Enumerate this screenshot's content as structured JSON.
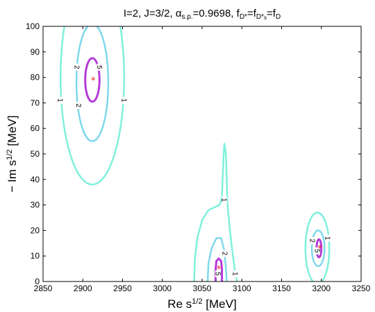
{
  "chart_data": {
    "type": "contour",
    "title": {
      "parts": [
        {
          "text": "I=2, J=3/2,  α",
          "sub": false
        },
        {
          "text": "s.p.",
          "sub": true
        },
        {
          "text": "=0.9698, f",
          "sub": false
        },
        {
          "text": "D*",
          "sub": true
        },
        {
          "text": "=f",
          "sub": false
        },
        {
          "text": "D*",
          "sub": true
        },
        {
          "text": "s",
          "sub": true,
          "deep": true
        },
        {
          "text": "=f",
          "sub": false
        },
        {
          "text": "D",
          "sub": true
        }
      ]
    },
    "xlabel": {
      "base": "Re s",
      "sup": "1/2",
      "unit": " [MeV]"
    },
    "ylabel": {
      "base": "− Im s",
      "sup": "1/2",
      "unit": " [MeV]"
    },
    "xlim": [
      2850,
      3250
    ],
    "ylim": [
      0,
      100
    ],
    "xticks": [
      "2850",
      "2900",
      "2950",
      "3000",
      "3050",
      "3100",
      "3150",
      "3200",
      "3250"
    ],
    "yticks": [
      "0",
      "10",
      "20",
      "30",
      "40",
      "50",
      "60",
      "70",
      "80",
      "90",
      "100"
    ],
    "colors": {
      "level1": "#7ff0dc",
      "level2": "#7fd8ec",
      "level5": "#b43bd9",
      "pole": "#ee2222",
      "frame": "#000000"
    },
    "contours": [
      {
        "name": "cluster-a-level-1",
        "level": "1",
        "kind": "ellipse",
        "cx": 2912,
        "cy": 80,
        "rx": 40,
        "ry": 42,
        "clip_top": 100,
        "labels": [
          {
            "x": 2872,
            "y": 71,
            "text": "1",
            "rot": 90
          },
          {
            "x": 2952,
            "y": 71,
            "text": "1",
            "rot": 90
          }
        ]
      },
      {
        "name": "cluster-a-level-2",
        "level": "2",
        "kind": "ellipse",
        "cx": 2912,
        "cy": 78,
        "rx": 20,
        "ry": 23,
        "clip_top": 100,
        "labels": [
          {
            "x": 2893,
            "y": 84,
            "text": "2",
            "rot": 90
          },
          {
            "x": 2895,
            "y": 69,
            "text": "2",
            "rot": 90
          }
        ]
      },
      {
        "name": "cluster-a-level-5",
        "level": "5",
        "kind": "ellipse",
        "cx": 2912,
        "cy": 79,
        "rx": 9,
        "ry": 8.5,
        "labels": [
          {
            "x": 2921,
            "y": 84,
            "text": "5",
            "rot": 90
          }
        ]
      },
      {
        "name": "cluster-b-level-1",
        "level": "1",
        "kind": "path",
        "points": [
          [
            3040,
            0
          ],
          [
            3041,
            9
          ],
          [
            3044,
            17
          ],
          [
            3050,
            24
          ],
          [
            3058,
            28
          ],
          [
            3065,
            29
          ],
          [
            3072,
            30
          ],
          [
            3075,
            33
          ],
          [
            3076,
            42
          ],
          [
            3077,
            49
          ],
          [
            3078,
            54
          ],
          [
            3080,
            50
          ],
          [
            3081,
            40
          ],
          [
            3082,
            30
          ],
          [
            3085,
            20
          ],
          [
            3088,
            12
          ],
          [
            3091,
            5
          ],
          [
            3094,
            0
          ]
        ],
        "labels": [
          {
            "x": 3078,
            "y": 32,
            "text": "1",
            "rot": 90
          },
          {
            "x": 3092,
            "y": 3,
            "text": "1",
            "rot": 90
          }
        ]
      },
      {
        "name": "cluster-b-level-2",
        "level": "2",
        "kind": "path",
        "points": [
          [
            3057,
            0
          ],
          [
            3058,
            7
          ],
          [
            3062,
            13
          ],
          [
            3068,
            17
          ],
          [
            3074,
            17
          ],
          [
            3078,
            12
          ],
          [
            3080,
            5
          ],
          [
            3081,
            0
          ]
        ],
        "labels": [
          {
            "x": 3079,
            "y": 11,
            "text": "2",
            "rot": 90
          }
        ]
      },
      {
        "name": "cluster-b-level-5",
        "level": "5",
        "kind": "path",
        "points": [
          [
            3067,
            0
          ],
          [
            3067,
            5
          ],
          [
            3068,
            8
          ],
          [
            3071,
            9
          ],
          [
            3074,
            8
          ],
          [
            3075,
            5
          ],
          [
            3075,
            0
          ]
        ],
        "labels": [
          {
            "x": 3070,
            "y": 3,
            "text": "5",
            "rot": 90
          }
        ]
      },
      {
        "name": "cluster-c-level-1",
        "level": "1",
        "kind": "ellipse",
        "cx": 3195,
        "cy": 13,
        "rx": 15,
        "ry": 14,
        "labels": [
          {
            "x": 3208,
            "y": 17,
            "text": "1",
            "rot": 90
          }
        ]
      },
      {
        "name": "cluster-c-level-2",
        "level": "2",
        "kind": "ellipse",
        "cx": 3196,
        "cy": 13,
        "rx": 8,
        "ry": 7,
        "labels": [
          {
            "x": 3189,
            "y": 16,
            "text": "2",
            "rot": 90
          }
        ]
      },
      {
        "name": "cluster-c-level-5",
        "level": "5",
        "kind": "ellipse",
        "cx": 3197,
        "cy": 13,
        "rx": 3,
        "ry": 3.5,
        "labels": [
          {
            "x": 3195,
            "y": 12,
            "text": "5",
            "rot": 90
          }
        ]
      }
    ],
    "poles": [
      {
        "name": "pole-a",
        "x": 2913,
        "y": 79
      },
      {
        "name": "pole-b",
        "x": 3071,
        "y": 5
      },
      {
        "name": "pole-c",
        "x": 3198,
        "y": 13
      }
    ]
  }
}
